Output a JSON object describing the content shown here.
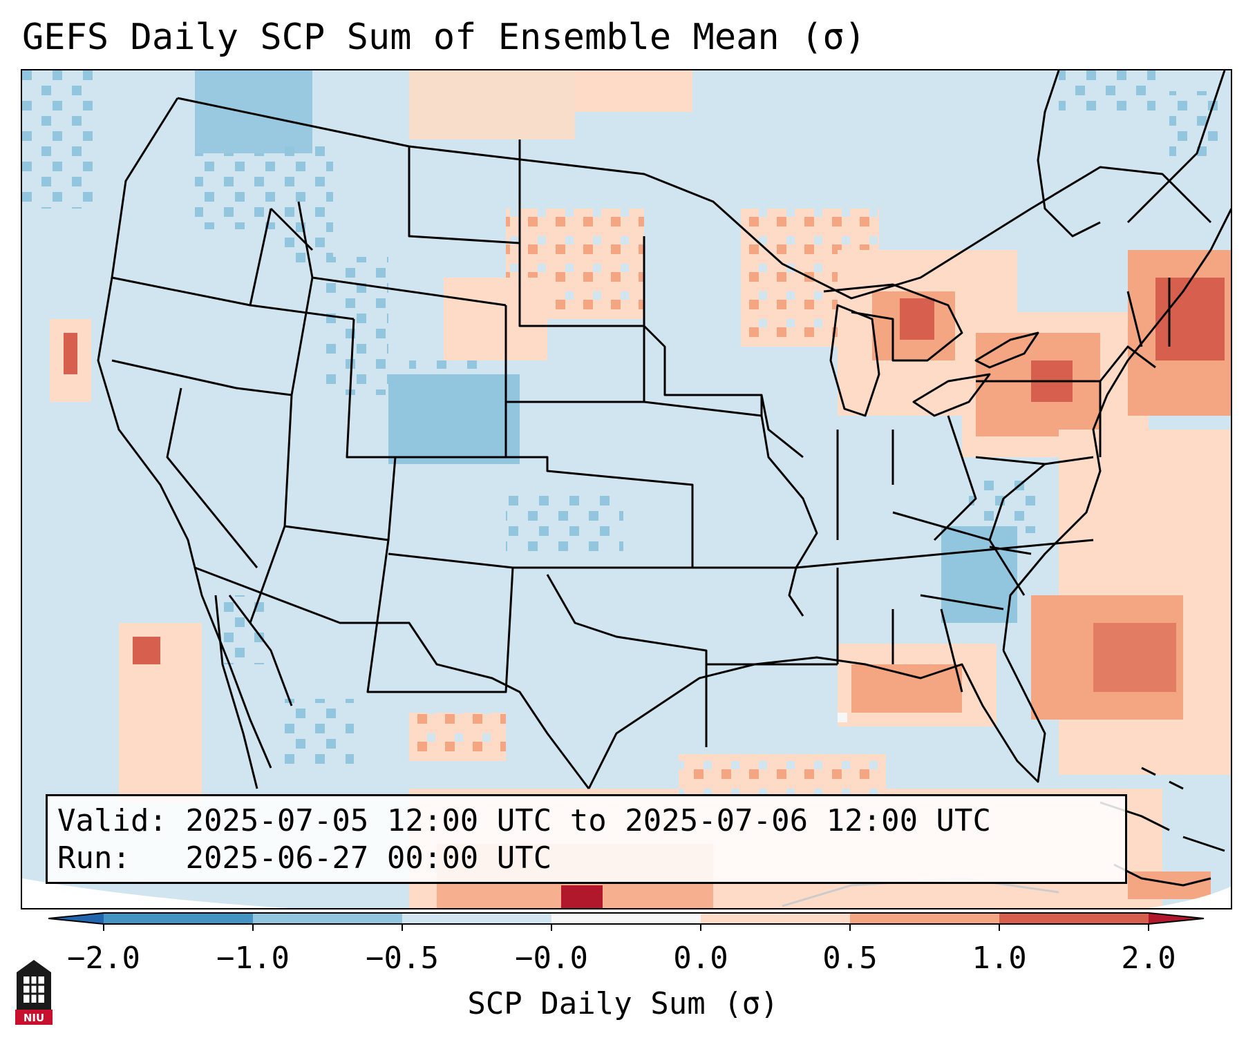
{
  "title": "GEFS Daily SCP Sum of Ensemble Mean (σ)",
  "info": {
    "valid_label": "Valid:",
    "valid_value": "2025-07-05 12:00 UTC to 2025-07-06 12:00 UTC",
    "run_label": "Run:",
    "run_value": "2025-06-27 00:00 UTC"
  },
  "colorbar": {
    "label": "SCP Daily Sum (σ)",
    "ticks": [
      "−2.0",
      "−1.0",
      "−0.5",
      "−0.0",
      "0.0",
      "0.5",
      "1.0",
      "2.0"
    ],
    "colors": {
      "below_min": "#2166ac",
      "bin_1": "#4393c3",
      "bin_2": "#92c5de",
      "bin_3": "#d1e5f0",
      "bin_4": "#f7f7f7",
      "bin_5": "#fddbc7",
      "bin_6": "#f4a582",
      "bin_7": "#d6604d",
      "above_max": "#b2182b"
    }
  },
  "logo": {
    "text": "NIU",
    "color": "#c8102e"
  },
  "map": {
    "background_color": "#d1e5f0",
    "boundary_color": "#000000"
  }
}
